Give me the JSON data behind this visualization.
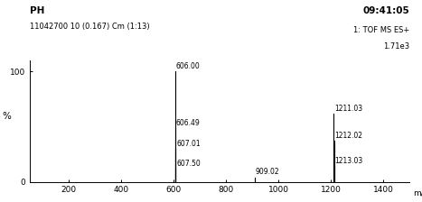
{
  "title_left": "PH",
  "title_right": "09:41:05",
  "subtitle_left": "11042700 10 (0.167) Cm (1:13)",
  "subtitle_right_line1": "1: TOF MS ES+",
  "subtitle_right_line2": "1.71e3",
  "xlabel": "m/z",
  "ylabel": "%",
  "xlim": [
    50,
    1500
  ],
  "ylim": [
    0,
    110
  ],
  "xticks": [
    200,
    400,
    600,
    800,
    1000,
    1200,
    1400
  ],
  "yticks": [
    0,
    100
  ],
  "peaks": [
    {
      "mz": 606.0,
      "intensity": 100.0,
      "label": "606.00"
    },
    {
      "mz": 606.49,
      "intensity": 49.0,
      "label": "606.49"
    },
    {
      "mz": 607.01,
      "intensity": 30.0,
      "label": "607.01"
    },
    {
      "mz": 607.5,
      "intensity": 12.0,
      "label": "607.50"
    },
    {
      "mz": 909.02,
      "intensity": 4.0,
      "label": "909.02"
    },
    {
      "mz": 1211.03,
      "intensity": 62.0,
      "label": "1211.03"
    },
    {
      "mz": 1212.02,
      "intensity": 37.0,
      "label": "1212.02"
    },
    {
      "mz": 1213.03,
      "intensity": 14.0,
      "label": "1213.03"
    }
  ],
  "line_color": "#000000",
  "background_color": "#ffffff",
  "label_fontsize": 5.5,
  "axis_fontsize": 6.5,
  "header_fontsize": 7.5,
  "subheader_fontsize": 6.0
}
